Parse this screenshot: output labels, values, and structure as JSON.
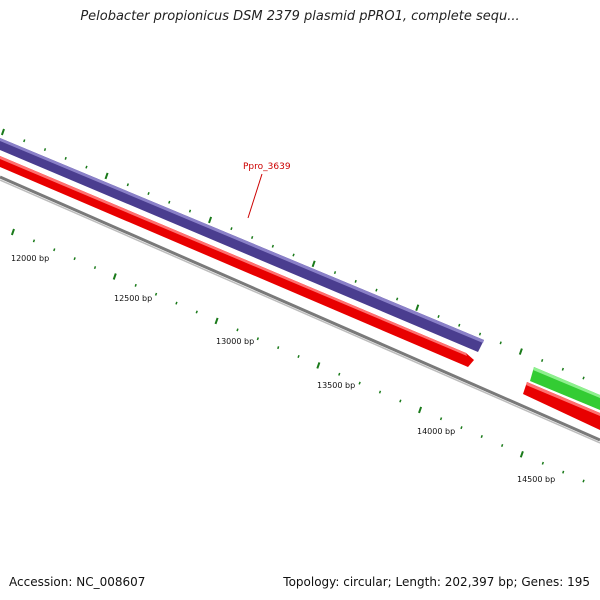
{
  "title": "Pelobacter propionicus DSM 2379 plasmid pPRO1, complete sequ...",
  "footer": {
    "accession": "Accession: NC_008607",
    "summary": "Topology: circular; Length: 202,397 bp; Genes: 195"
  },
  "colors": {
    "tick": "#1a7a1a",
    "backbone": "#808080",
    "gene_blue": "#4a3d8f",
    "gene_red": "#e80000",
    "gene_green": "#33cc33",
    "label_red": "#cc0000"
  },
  "map": {
    "tick_labels": [
      "12000 bp",
      "12500 bp",
      "13000 bp",
      "13500 bp",
      "14000 bp",
      "14500 bp"
    ],
    "gene_label": "Ppro_3639"
  }
}
